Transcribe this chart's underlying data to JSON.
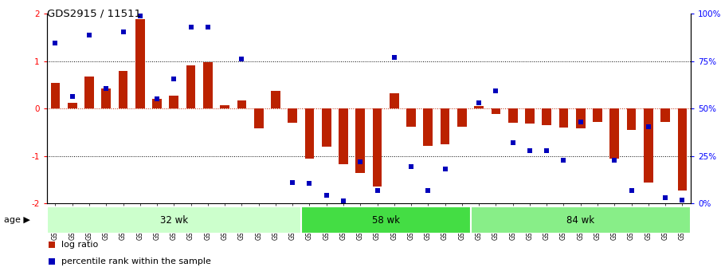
{
  "title": "GDS2915 / 11511",
  "samples": [
    "GSM97277",
    "GSM97278",
    "GSM97279",
    "GSM97280",
    "GSM97281",
    "GSM97282",
    "GSM97283",
    "GSM97284",
    "GSM97285",
    "GSM97286",
    "GSM97287",
    "GSM97288",
    "GSM97289",
    "GSM97290",
    "GSM97291",
    "GSM97292",
    "GSM97293",
    "GSM97294",
    "GSM97295",
    "GSM97296",
    "GSM97297",
    "GSM97298",
    "GSM97299",
    "GSM97300",
    "GSM97301",
    "GSM97302",
    "GSM97303",
    "GSM97304",
    "GSM97305",
    "GSM97306",
    "GSM97307",
    "GSM97308",
    "GSM97309",
    "GSM97310",
    "GSM97311",
    "GSM97312",
    "GSM97313",
    "GSM97314"
  ],
  "log_ratio": [
    0.55,
    0.12,
    0.68,
    0.42,
    0.8,
    1.88,
    0.2,
    0.28,
    0.92,
    0.98,
    0.08,
    0.18,
    -0.42,
    0.38,
    -0.3,
    -1.05,
    -0.8,
    -1.18,
    -1.35,
    -1.65,
    0.32,
    -0.38,
    -0.78,
    -0.75,
    -0.38,
    0.05,
    -0.12,
    -0.3,
    -0.32,
    -0.35,
    -0.4,
    -0.42,
    -0.28,
    -1.05,
    -0.45,
    -1.55,
    -0.28,
    -1.72
  ],
  "percentile": [
    1.38,
    0.25,
    1.55,
    0.42,
    1.62,
    1.95,
    0.2,
    0.62,
    1.72,
    1.72,
    null,
    1.05,
    null,
    null,
    -1.55,
    -1.58,
    -1.82,
    -1.95,
    -1.12,
    -1.72,
    1.08,
    -1.22,
    -1.72,
    -1.28,
    null,
    0.12,
    0.38,
    -0.72,
    -0.88,
    -0.88,
    -1.08,
    -0.28,
    null,
    -1.08,
    -1.72,
    -0.38,
    -1.88,
    -1.92
  ],
  "groups": [
    {
      "label": "32 wk",
      "start": 0,
      "end": 15
    },
    {
      "label": "58 wk",
      "start": 15,
      "end": 25
    },
    {
      "label": "84 wk",
      "start": 25,
      "end": 38
    }
  ],
  "group_colors": [
    "#ccffcc",
    "#44dd44",
    "#88ee88"
  ],
  "bar_color": "#bb2200",
  "dot_color": "#0000bb",
  "ylim": [
    -2,
    2
  ],
  "ytick_labels_left": [
    "-2",
    "-1",
    "0",
    "1",
    "2"
  ],
  "ytick_labels_right": [
    "0%",
    "25%",
    "50%",
    "75%",
    "100%"
  ]
}
